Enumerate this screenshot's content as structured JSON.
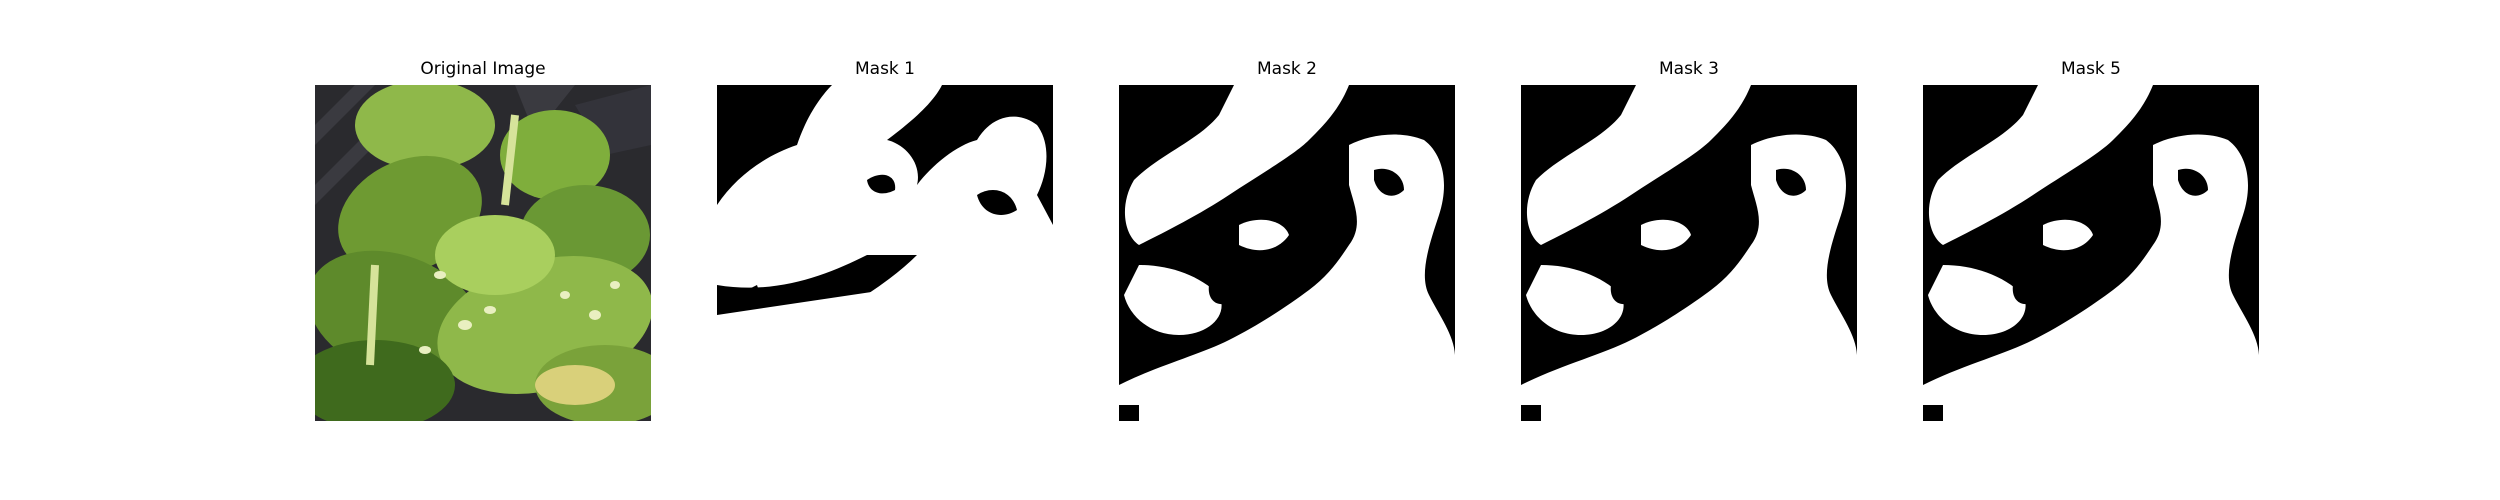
{
  "figure": {
    "panels": [
      {
        "title": "Original Image",
        "kind": "photo"
      },
      {
        "title": "Mask 1",
        "kind": "mask"
      },
      {
        "title": "Mask 2",
        "kind": "mask"
      },
      {
        "title": "Mask 3",
        "kind": "mask"
      },
      {
        "title": "Mask 5",
        "kind": "mask"
      }
    ]
  },
  "colors": {
    "mask_foreground": "#ffffff",
    "mask_background": "#000000",
    "leaf_light": "#b9d56e",
    "leaf_mid": "#7aa23a",
    "leaf_dark": "#3f6a1d",
    "tray_dark": "#2a2a2e"
  }
}
